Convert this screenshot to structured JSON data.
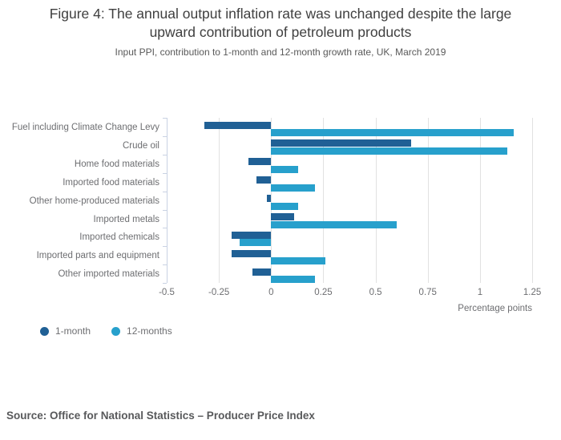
{
  "figure": {
    "title": "Figure 4: The annual output inflation rate was unchanged despite the large upward contribution of petroleum products",
    "subtitle": "Input PPI, contribution to 1-month and 12-month growth rate, UK, March 2019",
    "source": "Source: Office for National Statistics – Producer Price Index"
  },
  "colors": {
    "series_1_month": "#206095",
    "series_12_months": "#27a0cc",
    "gridline": "#e1e1e1",
    "axis": "#c9d2e3",
    "text_gray": "#6d6e71"
  },
  "chart_data": {
    "type": "bar",
    "orientation": "horizontal",
    "title": "Figure 4: The annual output inflation rate was unchanged despite the large upward contribution of petroleum products",
    "subtitle": "Input PPI, contribution to 1-month and 12-month growth rate, UK, March 2019",
    "categories": [
      "Fuel including Climate Change Levy",
      "Crude oil",
      "Home food materials",
      "Imported food materials",
      "Other home-produced materials",
      "Imported metals",
      "Imported chemicals",
      "Imported parts and equipment",
      "Other imported materials"
    ],
    "series": [
      {
        "name": "1-month",
        "color": "#206095",
        "values": [
          -0.32,
          0.67,
          -0.11,
          -0.07,
          -0.02,
          0.11,
          -0.19,
          -0.19,
          -0.09
        ]
      },
      {
        "name": "12-months",
        "color": "#27a0cc",
        "values": [
          1.16,
          1.13,
          0.13,
          0.21,
          0.13,
          0.6,
          -0.15,
          0.26,
          0.21
        ]
      }
    ],
    "xlabel": "Percentage points",
    "ylabel": "",
    "xlim": [
      -0.5,
      1.25
    ],
    "xticks": [
      -0.5,
      -0.25,
      0,
      0.25,
      0.5,
      0.75,
      1,
      1.25
    ],
    "xtick_labels": [
      "-0.5",
      "-0.25",
      "0",
      "0.25",
      "0.5",
      "0.75",
      "1",
      "1.25"
    ],
    "grid": true,
    "legend_position": "bottom-left"
  },
  "legend": {
    "items": [
      {
        "label": "1-month",
        "color": "#206095"
      },
      {
        "label": "12-months",
        "color": "#27a0cc"
      }
    ]
  }
}
